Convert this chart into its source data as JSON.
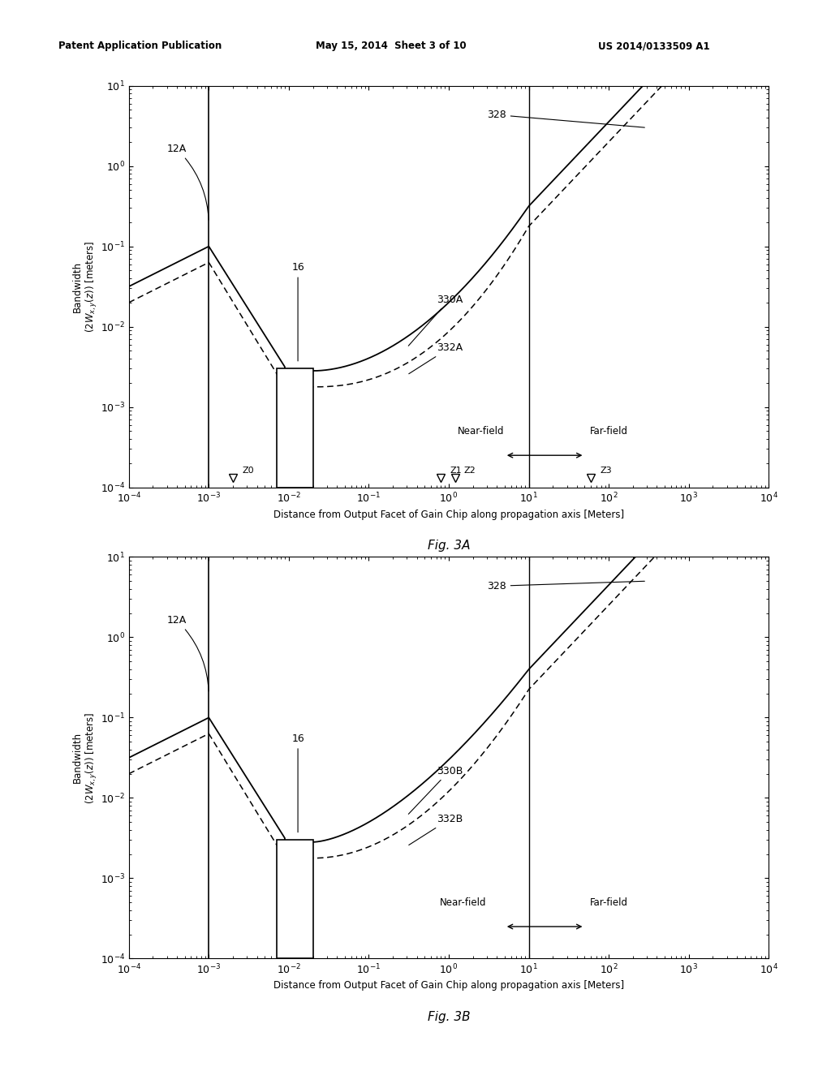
{
  "header_left": "Patent Application Publication",
  "header_center": "May 15, 2014  Sheet 3 of 10",
  "header_right": "US 2014/0133509 A1",
  "fig3a_caption": "Fig. 3A",
  "fig3b_caption": "Fig. 3B",
  "xlabel": "Distance from Output Facet of Gain Chip along propagation axis [Meters]",
  "background_color": "#ffffff"
}
